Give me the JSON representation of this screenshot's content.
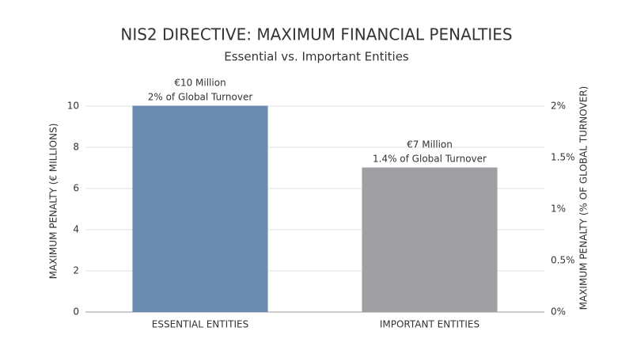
{
  "chart_data": {
    "type": "bar",
    "title": "NIS2 DIRECTIVE: MAXIMUM FINANCIAL PENALTIES",
    "subtitle": "Essential vs. Important Entities",
    "categories": [
      "ESSENTIAL ENTITIES",
      "IMPORTANT ENTITIES"
    ],
    "series": [
      {
        "colors": [
          "#6a8aaf",
          "#a09fa4"
        ],
        "values": [
          10,
          7
        ],
        "value_labels": [
          "€10 Million",
          "€7 Million"
        ]
      },
      {
        "axis": "y2",
        "values": [
          2,
          1.4
        ],
        "value_labels": [
          "2% of Global Turnover",
          "1.4% of Global Turnover"
        ]
      }
    ],
    "ylabel": "MAXIMUM PENALTY (€ MILLIONS)",
    "y2label": "MAXIMUM PENALTY (% OF GLOBAL TURNOVER)",
    "ylim": [
      0,
      10
    ],
    "yticks": [
      0,
      2,
      4,
      6,
      8,
      10
    ],
    "y2lim": [
      0,
      2
    ],
    "y2ticks": [
      {
        "value": 0,
        "label": "0%"
      },
      {
        "value": 0.5,
        "label": "0.5%"
      },
      {
        "value": 1,
        "label": "1%"
      },
      {
        "value": 1.5,
        "label": "1.5%"
      },
      {
        "value": 2,
        "label": "2%"
      }
    ],
    "grid": true
  }
}
